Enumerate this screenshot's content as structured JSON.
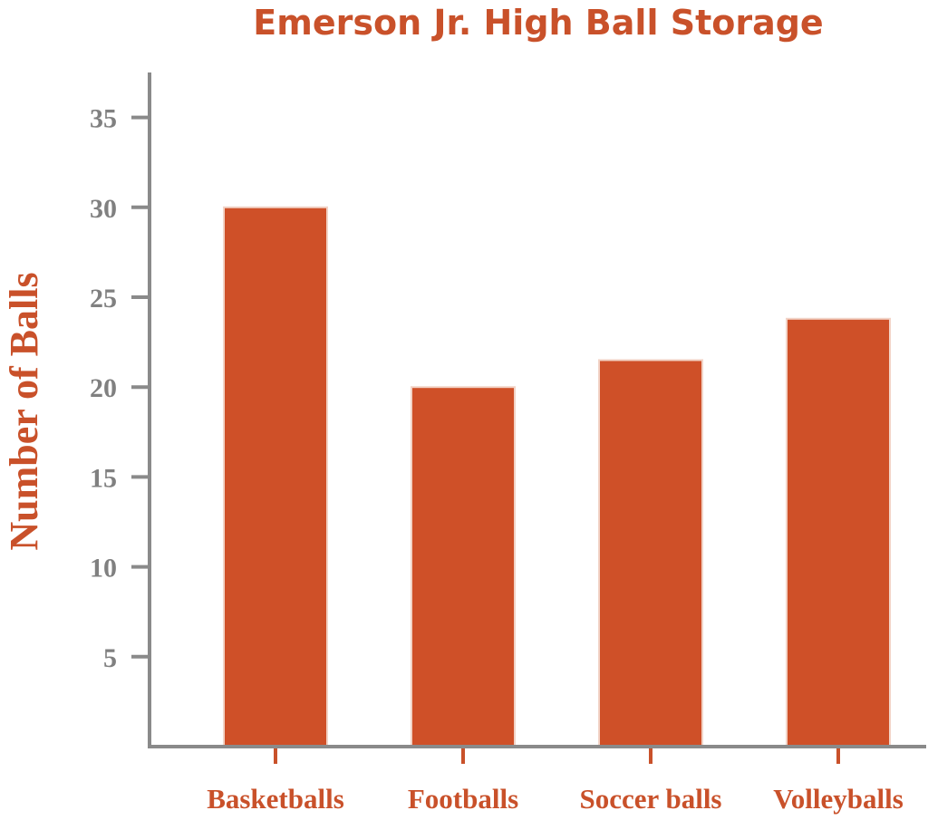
{
  "chart_data": {
    "type": "bar",
    "title": "Emerson Jr. High Ball Storage",
    "xlabel": "",
    "ylabel": "Number of Balls",
    "categories": [
      "Basketballs",
      "Footballs",
      "Soccer balls",
      "Volleyballs"
    ],
    "values": [
      30,
      20,
      21.5,
      23.8
    ],
    "yticks": [
      5,
      10,
      15,
      20,
      25,
      30,
      35
    ],
    "ylim": [
      0,
      37.5
    ],
    "grid": false,
    "legend": "none"
  },
  "colors": {
    "bar": "#cf5028",
    "bar_edge": "#f2d3c6",
    "axis": "#8a8a8a",
    "title": "#c9512a",
    "tick_label": "#808080",
    "category_label": "#c9512a",
    "category_tick": "#c9512a"
  }
}
